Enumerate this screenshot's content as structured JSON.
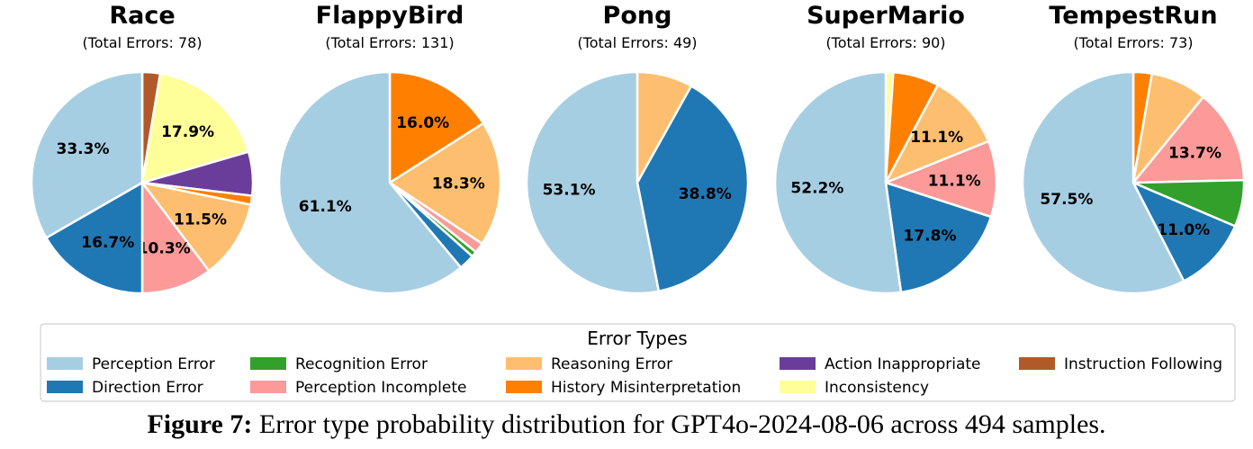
{
  "colors": {
    "Perception Error": "#a6cee3",
    "Direction Error": "#1f78b4",
    "Recognition Error": "#33a02c",
    "Perception Incomplete": "#fb9a99",
    "Reasoning Error": "#fdbf6f",
    "History Misinterpretation": "#ff7f00",
    "Action Inappropriate": "#6a3d9a",
    "Inconsistency": "#ffff99",
    "Instruction Following": "#b15928"
  },
  "chart_data": [
    {
      "type": "pie",
      "title": "Race",
      "subtitle": "(Total Errors: 78)",
      "slices": [
        {
          "name": "Instruction Following",
          "value": 2.6,
          "label": ""
        },
        {
          "name": "Inconsistency",
          "value": 17.9,
          "label": "17.9%"
        },
        {
          "name": "Action Inappropriate",
          "value": 6.4,
          "label": ""
        },
        {
          "name": "History Misinterpretation",
          "value": 1.3,
          "label": ""
        },
        {
          "name": "Reasoning Error",
          "value": 11.5,
          "label": "11.5%"
        },
        {
          "name": "Perception Incomplete",
          "value": 10.3,
          "label": "10.3%"
        },
        {
          "name": "Direction Error",
          "value": 16.7,
          "label": "16.7%"
        },
        {
          "name": "Perception Error",
          "value": 33.3,
          "label": "33.3%"
        }
      ]
    },
    {
      "type": "pie",
      "title": "FlappyBird",
      "subtitle": "(Total Errors: 131)",
      "slices": [
        {
          "name": "History Misinterpretation",
          "value": 16.0,
          "label": "16.0%"
        },
        {
          "name": "Reasoning Error",
          "value": 18.3,
          "label": "18.3%"
        },
        {
          "name": "Perception Incomplete",
          "value": 1.5,
          "label": ""
        },
        {
          "name": "Recognition Error",
          "value": 0.8,
          "label": ""
        },
        {
          "name": "Direction Error",
          "value": 2.3,
          "label": ""
        },
        {
          "name": "Perception Error",
          "value": 61.1,
          "label": "61.1%"
        }
      ]
    },
    {
      "type": "pie",
      "title": "Pong",
      "subtitle": "(Total Errors: 49)",
      "slices": [
        {
          "name": "Reasoning Error",
          "value": 8.1,
          "label": ""
        },
        {
          "name": "Direction Error",
          "value": 38.8,
          "label": "38.8%"
        },
        {
          "name": "Perception Error",
          "value": 53.1,
          "label": "53.1%"
        }
      ]
    },
    {
      "type": "pie",
      "title": "SuperMario",
      "subtitle": "(Total Errors: 90)",
      "slices": [
        {
          "name": "Inconsistency",
          "value": 1.1,
          "label": ""
        },
        {
          "name": "History Misinterpretation",
          "value": 6.7,
          "label": ""
        },
        {
          "name": "Reasoning Error",
          "value": 11.1,
          "label": "11.1%"
        },
        {
          "name": "Perception Incomplete",
          "value": 11.1,
          "label": "11.1%"
        },
        {
          "name": "Direction Error",
          "value": 17.8,
          "label": "17.8%"
        },
        {
          "name": "Perception Error",
          "value": 52.2,
          "label": "52.2%"
        }
      ]
    },
    {
      "type": "pie",
      "title": "TempestRun",
      "subtitle": "(Total Errors: 73)",
      "slices": [
        {
          "name": "History Misinterpretation",
          "value": 2.7,
          "label": ""
        },
        {
          "name": "Reasoning Error",
          "value": 8.2,
          "label": ""
        },
        {
          "name": "Perception Incomplete",
          "value": 13.7,
          "label": "13.7%"
        },
        {
          "name": "Recognition Error",
          "value": 6.8,
          "label": ""
        },
        {
          "name": "Direction Error",
          "value": 11.0,
          "label": "11.0%"
        },
        {
          "name": "Perception Error",
          "value": 57.5,
          "label": "57.5%"
        }
      ]
    }
  ],
  "legend": {
    "title": "Error Types",
    "placement": "bottom",
    "entries": [
      "Perception Error",
      "Direction Error",
      "Recognition Error",
      "Perception Incomplete",
      "Reasoning Error",
      "History Misinterpretation",
      "Action Inappropriate",
      "Inconsistency",
      "Instruction Following"
    ]
  },
  "caption": {
    "prefix": "Figure 7:",
    "text": "Error type probability distribution for GPT4o-2024-08-06 across 494 samples."
  }
}
